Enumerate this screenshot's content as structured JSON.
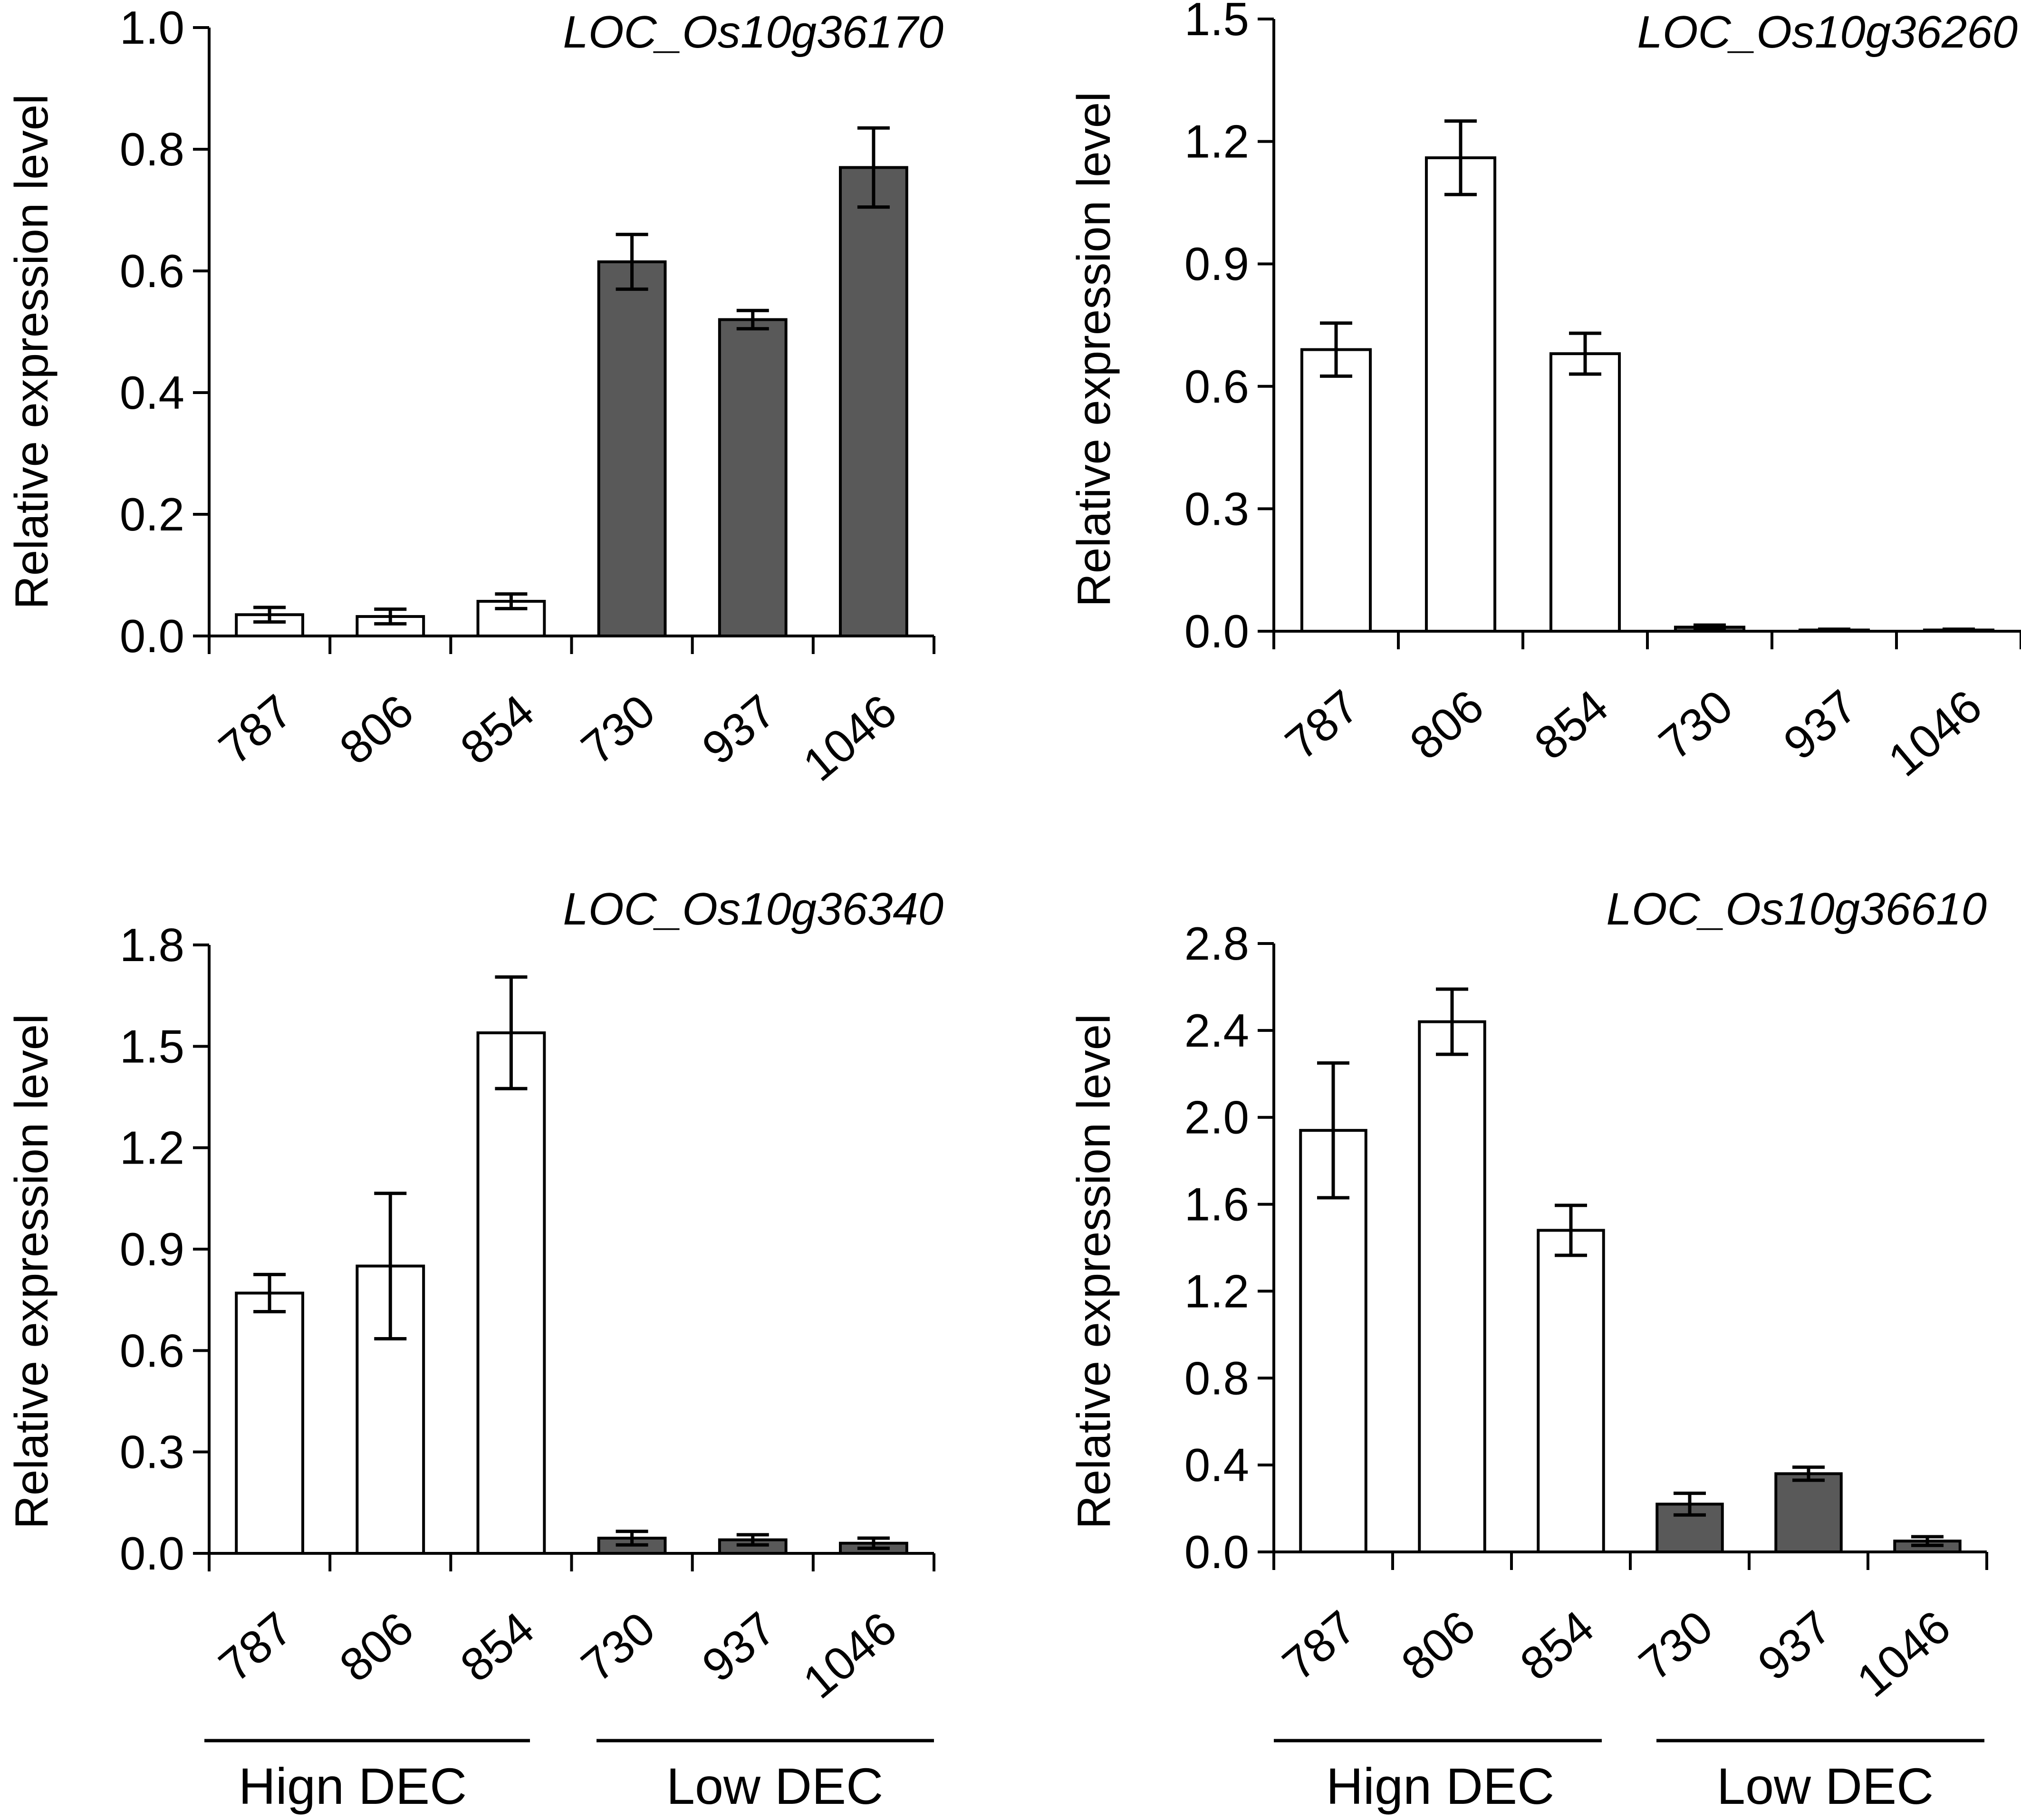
{
  "colors": {
    "high_bar_fill": "#ffffff",
    "low_bar_fill": "#595959",
    "stroke": "#000000",
    "background": "#ffffff"
  },
  "groups": [
    "Hign DEC",
    "Low DEC"
  ],
  "chart_data": [
    {
      "type": "bar",
      "title": "LOC_Os10g36170",
      "xlabel": "",
      "ylabel": "Relative expression level",
      "categories": [
        "787",
        "806",
        "854",
        "730",
        "937",
        "1046"
      ],
      "groups": [
        "high",
        "high",
        "high",
        "low",
        "low",
        "low"
      ],
      "values": [
        0.035,
        0.032,
        0.057,
        0.615,
        0.52,
        0.77
      ],
      "errors": [
        0.012,
        0.012,
        0.012,
        0.045,
        0.015,
        0.065
      ],
      "ylim": [
        0,
        1.0
      ],
      "yticks": [
        "0.0",
        "0.2",
        "0.4",
        "0.6",
        "0.8",
        "1.0"
      ],
      "ytick_values": [
        0,
        0.2,
        0.4,
        0.6,
        0.8,
        1.0
      ],
      "legend": "none"
    },
    {
      "type": "bar",
      "title": "LOC_Os10g36260",
      "xlabel": "",
      "ylabel": "Relative expression level",
      "categories": [
        "787",
        "806",
        "854",
        "730",
        "937",
        "1046"
      ],
      "groups": [
        "high",
        "high",
        "high",
        "low",
        "low",
        "low"
      ],
      "values": [
        0.69,
        1.16,
        0.68,
        0.01,
        0.003,
        0.003
      ],
      "errors": [
        0.065,
        0.09,
        0.05,
        0.005,
        0.002,
        0.002
      ],
      "ylim": [
        0,
        1.5
      ],
      "yticks": [
        "0.0",
        "0.3",
        "0.6",
        "0.9",
        "1.2",
        "1.5"
      ],
      "ytick_values": [
        0,
        0.3,
        0.6,
        0.9,
        1.2,
        1.5
      ],
      "legend": "none"
    },
    {
      "type": "bar",
      "title": "LOC_Os10g36340",
      "xlabel": "",
      "ylabel": "Relative expression level",
      "categories": [
        "787",
        "806",
        "854",
        "730",
        "937",
        "1046"
      ],
      "groups": [
        "high",
        "high",
        "high",
        "low",
        "low",
        "low"
      ],
      "values": [
        0.77,
        0.85,
        1.54,
        0.045,
        0.04,
        0.03
      ],
      "errors": [
        0.055,
        0.215,
        0.165,
        0.02,
        0.015,
        0.015
      ],
      "ylim": [
        0,
        1.8
      ],
      "yticks": [
        "0.0",
        "0.3",
        "0.6",
        "0.9",
        "1.2",
        "1.5",
        "1.8"
      ],
      "ytick_values": [
        0,
        0.3,
        0.6,
        0.9,
        1.2,
        1.5,
        1.8
      ],
      "legend": "none"
    },
    {
      "type": "bar",
      "title": "LOC_Os10g36610",
      "xlabel": "",
      "ylabel": "Relative expression level",
      "categories": [
        "787",
        "806",
        "854",
        "730",
        "937",
        "1046"
      ],
      "groups": [
        "high",
        "high",
        "high",
        "low",
        "low",
        "low"
      ],
      "values": [
        1.94,
        2.44,
        1.48,
        0.22,
        0.36,
        0.05
      ],
      "errors": [
        0.31,
        0.15,
        0.115,
        0.05,
        0.03,
        0.02
      ],
      "ylim": [
        0,
        2.8
      ],
      "yticks": [
        "0.0",
        "0.4",
        "0.8",
        "1.2",
        "1.6",
        "2.0",
        "2.4",
        "2.8"
      ],
      "ytick_values": [
        0,
        0.4,
        0.8,
        1.2,
        1.6,
        2.0,
        2.4,
        2.8
      ],
      "legend": "none"
    }
  ]
}
